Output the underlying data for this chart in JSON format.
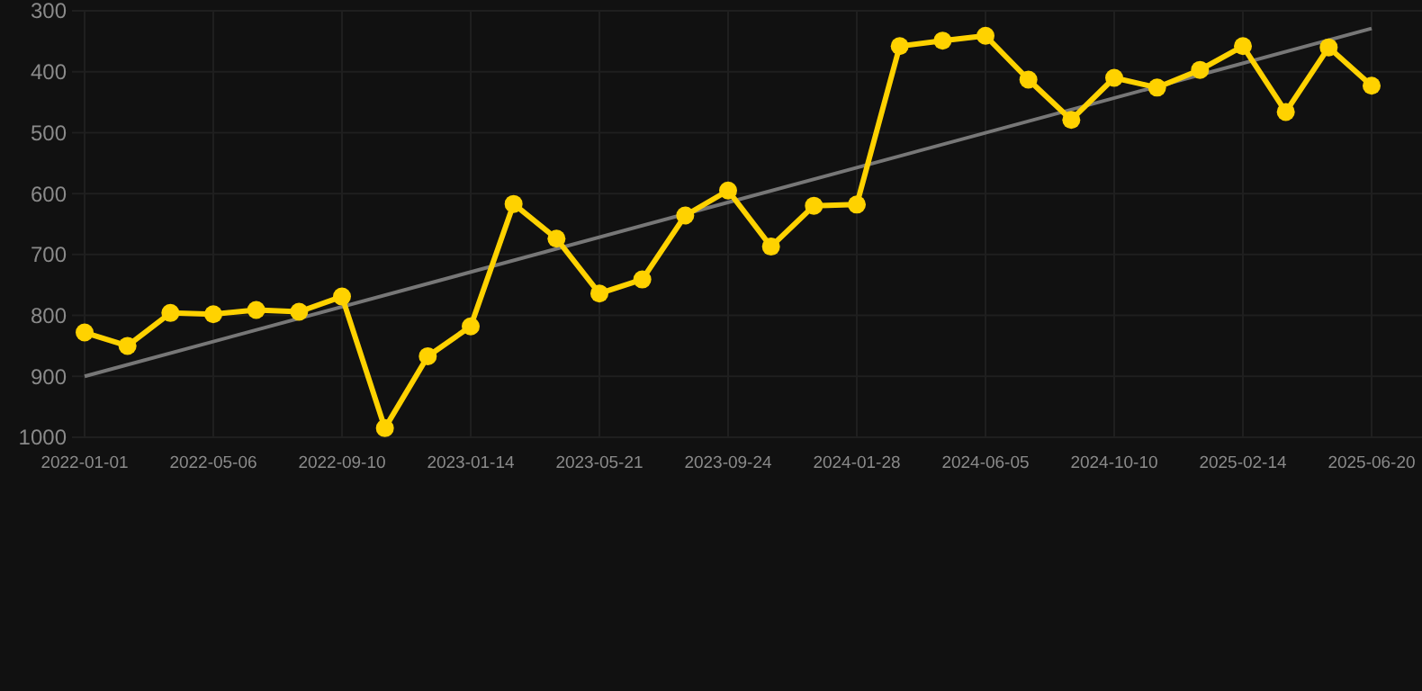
{
  "chart_data": {
    "type": "line",
    "categories": [
      "2022-01-01",
      null,
      null,
      "2022-05-06",
      null,
      null,
      "2022-09-10",
      null,
      null,
      "2023-01-14",
      null,
      null,
      "2023-05-21",
      null,
      null,
      "2023-09-24",
      null,
      null,
      "2024-01-28",
      null,
      null,
      "2024-06-05",
      null,
      null,
      "2024-10-10",
      null,
      null,
      "2025-02-14",
      null,
      null,
      "2025-06-20"
    ],
    "series": [
      {
        "color": "#ffd200",
        "marker": "circle",
        "values": [
          828,
          850,
          796,
          798,
          791,
          794,
          769,
          985,
          867,
          818,
          617,
          674,
          764,
          741,
          636,
          595,
          687,
          620,
          618,
          358,
          349,
          341,
          413,
          479,
          410,
          426,
          397,
          358,
          466,
          360,
          423
        ]
      },
      {
        "color": "#777777",
        "marker": "none",
        "values": [
          900,
          null,
          null,
          null,
          null,
          null,
          null,
          null,
          null,
          null,
          null,
          null,
          null,
          null,
          null,
          null,
          null,
          null,
          null,
          null,
          null,
          null,
          null,
          null,
          null,
          null,
          null,
          null,
          null,
          null,
          329
        ]
      }
    ],
    "ylim": [
      1000,
      300
    ],
    "yticks": [
      300,
      400,
      500,
      600,
      700,
      800,
      900,
      1000
    ],
    "grid": true
  }
}
